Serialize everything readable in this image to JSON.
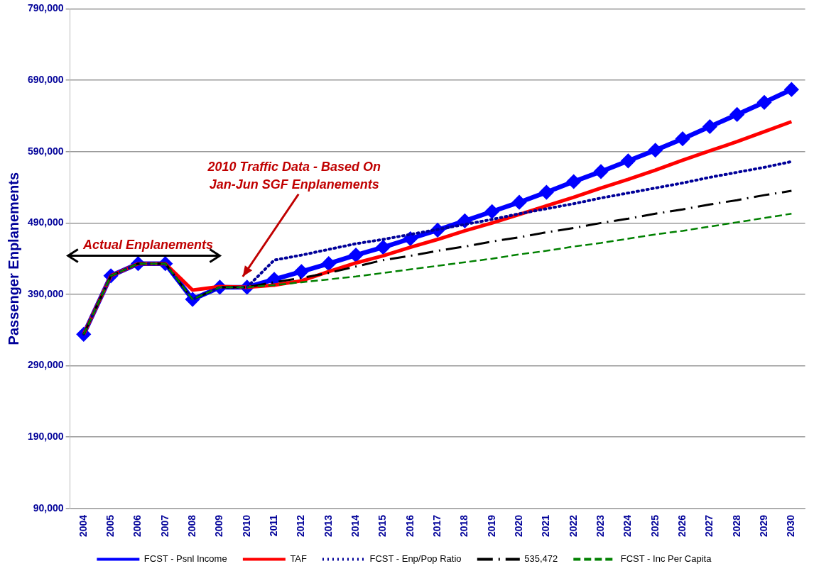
{
  "chart_data": {
    "type": "line",
    "ylabel": "Passenger Enplanements",
    "categories": [
      "2004",
      "2005",
      "2006",
      "2007",
      "2008",
      "2009",
      "2010",
      "2011",
      "2012",
      "2013",
      "2014",
      "2015",
      "2016",
      "2017",
      "2018",
      "2019",
      "2020",
      "2021",
      "2022",
      "2023",
      "2024",
      "2025",
      "2026",
      "2027",
      "2028",
      "2029",
      "2030"
    ],
    "series": [
      {
        "name": "FCST - Psnl Income",
        "color": "#0000ff",
        "marker": "diamond",
        "line_style": "solid",
        "values": [
          334000,
          416000,
          433000,
          433000,
          383000,
          400000,
          400000,
          411000,
          422000,
          433000,
          445000,
          456000,
          468000,
          480000,
          493000,
          506000,
          519000,
          533000,
          548000,
          562000,
          577000,
          592000,
          608000,
          625000,
          642000,
          659000,
          677000
        ]
      },
      {
        "name": "TAF",
        "color": "#ff0000",
        "marker": "none",
        "line_style": "solid",
        "values": [
          334000,
          416000,
          433000,
          433000,
          396000,
          401000,
          400000,
          403000,
          409000,
          422000,
          434000,
          444000,
          456000,
          467000,
          479000,
          490000,
          502000,
          514000,
          526000,
          539000,
          551000,
          564000,
          578000,
          591000,
          604000,
          618000,
          632000
        ]
      },
      {
        "name": "FCST - Enp/Pop Ratio",
        "color": "#000099",
        "marker": "none",
        "line_style": "dotted",
        "values": [
          334000,
          416000,
          433000,
          433000,
          383000,
          400000,
          400000,
          438000,
          445000,
          453000,
          461000,
          467000,
          474000,
          481000,
          488000,
          495000,
          503000,
          510000,
          517000,
          525000,
          532000,
          539000,
          546000,
          554000,
          561000,
          568000,
          576000
        ]
      },
      {
        "name": "535,472",
        "color": "#000000",
        "marker": "none",
        "line_style": "dashdot",
        "values": [
          334000,
          416000,
          433000,
          433000,
          383000,
          400000,
          400000,
          407000,
          413000,
          420000,
          429000,
          438000,
          444000,
          451000,
          457000,
          464000,
          470000,
          477000,
          483000,
          490000,
          496000,
          503000,
          509000,
          516000,
          522000,
          529000,
          535000
        ]
      },
      {
        "name": "FCST - Inc Per Capita",
        "color": "#008000",
        "marker": "none",
        "line_style": "dashed",
        "values": [
          334000,
          416000,
          433000,
          433000,
          383000,
          400000,
          400000,
          403000,
          407000,
          411000,
          415000,
          420000,
          425000,
          430000,
          435000,
          440000,
          446000,
          451000,
          457000,
          462000,
          468000,
          474000,
          479000,
          485000,
          491000,
          497000,
          503000
        ]
      }
    ],
    "ylim": [
      90000,
      790000
    ],
    "yticks": [
      {
        "value": 90000,
        "label": "90,000"
      },
      {
        "value": 190000,
        "label": "190,000"
      },
      {
        "value": 290000,
        "label": "290,000"
      },
      {
        "value": 390000,
        "label": "390,000"
      },
      {
        "value": 490000,
        "label": "490,000"
      },
      {
        "value": 590000,
        "label": "590,000"
      },
      {
        "value": 690000,
        "label": "690,000"
      },
      {
        "value": 790000,
        "label": "790,000"
      }
    ],
    "grid": "y",
    "legend": "bottom",
    "annotations": [
      "Actual Enplanements",
      "2010 Traffic Data - Based On\nJan-Jun SGF Enplanements"
    ]
  }
}
